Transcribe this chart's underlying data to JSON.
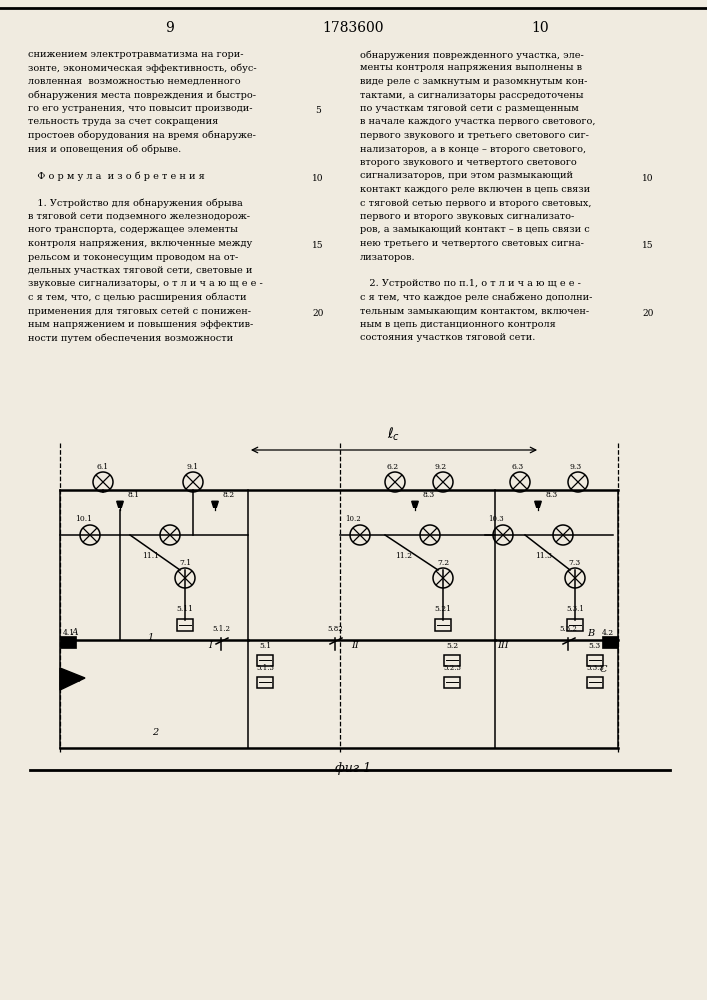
{
  "page_num_left": "9",
  "page_num_center": "1783600",
  "page_num_right": "10",
  "fig_label": "фиг 1",
  "bg_color": "#f0ebe0"
}
